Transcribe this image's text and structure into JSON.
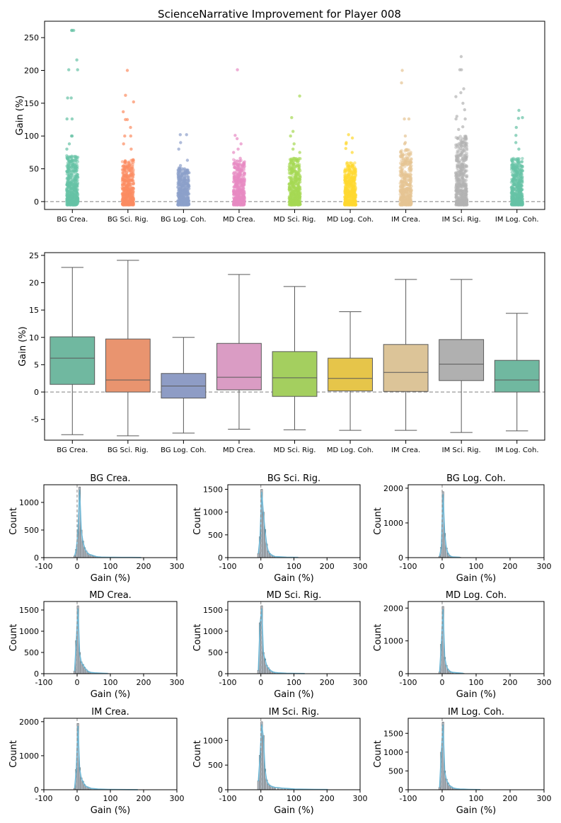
{
  "figure_title": "ScienceNarrative Improvement for Player 008",
  "colors": {
    "palette": [
      "#66c2a5",
      "#fc8d62",
      "#8da0cb",
      "#e78ac3",
      "#a6d854",
      "#ffd92f",
      "#e5c494",
      "#b3b3b3",
      "#66c2a5"
    ],
    "box_palette": [
      "#70b8a0",
      "#e9946f",
      "#8e9cc5",
      "#da9cc4",
      "#a4cf5f",
      "#e6c54a",
      "#dcc498",
      "#b0b0b0",
      "#70b8a0"
    ],
    "hist_fill": "#b9c2cc",
    "kde_line": "#6fb8d6"
  },
  "chart_data": [
    {
      "id": "strip",
      "type": "scatter",
      "subtype": "strip",
      "title": "ScienceNarrative Improvement for Player 008",
      "xlabel": "",
      "ylabel": "Gain (%)",
      "categories": [
        "BG Crea.",
        "BG Sci. Rig.",
        "BG Log. Coh.",
        "MD Crea.",
        "MD Sci. Rig.",
        "MD Log. Coh.",
        "IM Crea.",
        "IM Sci. Rig.",
        "IM Log. Coh."
      ],
      "ylim": [
        -12,
        275
      ],
      "yticks": [
        0,
        50,
        100,
        150,
        200,
        250
      ],
      "reference_line": 0,
      "dense_max": [
        70,
        64,
        52,
        64,
        66,
        60,
        80,
        100,
        66
      ],
      "sparse_values": [
        [
          261,
          261,
          261,
          216,
          201,
          201,
          158,
          158,
          126,
          126,
          100,
          100,
          88,
          80
        ],
        [
          200,
          162,
          152,
          137,
          125,
          125,
          113,
          100,
          100,
          88,
          80
        ],
        [
          102,
          102,
          90,
          80,
          63,
          55
        ],
        [
          201,
          101,
          96,
          88,
          80,
          75,
          66
        ],
        [
          161,
          128,
          107,
          100,
          88,
          80,
          75
        ],
        [
          102,
          97,
          90,
          88,
          81,
          75
        ],
        [
          200,
          181,
          126,
          126,
          100,
          90,
          88
        ],
        [
          221,
          201,
          201,
          172,
          166,
          160,
          150,
          140,
          130,
          126,
          126,
          114,
          110
        ],
        [
          139,
          128,
          127,
          113,
          101,
          90,
          80
        ]
      ]
    },
    {
      "id": "box",
      "type": "box",
      "xlabel": "",
      "ylabel": "Gain (%)",
      "categories": [
        "BG Crea.",
        "BG Sci. Rig.",
        "BG Log. Coh.",
        "MD Crea.",
        "MD Sci. Rig.",
        "MD Log. Coh.",
        "IM Crea.",
        "IM Sci. Rig.",
        "IM Log. Coh."
      ],
      "ylim": [
        -8.8,
        25.5
      ],
      "yticks": [
        -5,
        0,
        5,
        10,
        15,
        20,
        25
      ],
      "reference_line": 0,
      "boxes": [
        {
          "whislo": -7.8,
          "q1": 1.4,
          "med": 6.2,
          "q3": 10.1,
          "whishi": 22.8
        },
        {
          "whislo": -8.0,
          "q1": 0.0,
          "med": 2.2,
          "q3": 9.7,
          "whishi": 24.1
        },
        {
          "whislo": -7.5,
          "q1": -1.1,
          "med": 1.1,
          "q3": 3.4,
          "whishi": 10.0
        },
        {
          "whislo": -6.8,
          "q1": 0.4,
          "med": 2.7,
          "q3": 8.9,
          "whishi": 21.5
        },
        {
          "whislo": -6.9,
          "q1": -0.8,
          "med": 2.6,
          "q3": 7.4,
          "whishi": 19.3
        },
        {
          "whislo": -7.0,
          "q1": 0.2,
          "med": 2.5,
          "q3": 6.2,
          "whishi": 14.7
        },
        {
          "whislo": -7.0,
          "q1": 0.1,
          "med": 3.6,
          "q3": 8.7,
          "whishi": 20.6
        },
        {
          "whislo": -7.4,
          "q1": 2.1,
          "med": 5.1,
          "q3": 9.6,
          "whishi": 20.6
        },
        {
          "whislo": -7.1,
          "q1": 0.0,
          "med": 2.2,
          "q3": 5.8,
          "whishi": 14.4
        }
      ]
    },
    {
      "id": "hist",
      "type": "bar",
      "subtype": "histogram_grid",
      "xlabel": "Gain (%)",
      "ylabel": "Count",
      "xlim": [
        -100,
        300
      ],
      "xticks": [
        -100,
        0,
        100,
        200,
        300
      ],
      "reference_line": 0,
      "panels": [
        {
          "title": "BG Crea.",
          "ymax": 1320,
          "yticks": [
            0,
            500,
            1000
          ],
          "bins": [
            [
              -10,
              30
            ],
            [
              -5,
              150
            ],
            [
              0,
              470
            ],
            [
              5,
              1280
            ],
            [
              10,
              500
            ],
            [
              15,
              300
            ],
            [
              20,
              180
            ],
            [
              25,
              120
            ],
            [
              30,
              80
            ],
            [
              35,
              60
            ],
            [
              40,
              50
            ],
            [
              45,
              40
            ],
            [
              50,
              30
            ],
            [
              55,
              20
            ],
            [
              60,
              15
            ],
            [
              70,
              10
            ],
            [
              80,
              8
            ],
            [
              95,
              6
            ],
            [
              110,
              5
            ],
            [
              130,
              4
            ],
            [
              160,
              4
            ],
            [
              190,
              3
            ]
          ]
        },
        {
          "title": "BG Sci. Rig.",
          "ymax": 1600,
          "yticks": [
            0,
            500,
            1000,
            1500
          ],
          "bins": [
            [
              -10,
              90
            ],
            [
              -5,
              460
            ],
            [
              0,
              1500
            ],
            [
              5,
              1000
            ],
            [
              10,
              620
            ],
            [
              15,
              300
            ],
            [
              20,
              140
            ],
            [
              25,
              90
            ],
            [
              30,
              60
            ],
            [
              35,
              40
            ],
            [
              40,
              25
            ],
            [
              50,
              20
            ],
            [
              60,
              15
            ],
            [
              75,
              10
            ],
            [
              90,
              8
            ],
            [
              110,
              5
            ]
          ]
        },
        {
          "title": "BG Log. Coh.",
          "ymax": 2100,
          "yticks": [
            0,
            1000,
            2000
          ],
          "bins": [
            [
              -10,
              40
            ],
            [
              -5,
              300
            ],
            [
              0,
              1900
            ],
            [
              5,
              700
            ],
            [
              10,
              280
            ],
            [
              15,
              120
            ],
            [
              20,
              60
            ],
            [
              25,
              30
            ],
            [
              30,
              20
            ],
            [
              40,
              15
            ],
            [
              50,
              10
            ]
          ]
        },
        {
          "title": "MD Crea.",
          "ymax": 1700,
          "yticks": [
            0,
            500,
            1000,
            1500
          ],
          "bins": [
            [
              -10,
              60
            ],
            [
              -5,
              780
            ],
            [
              0,
              1600
            ],
            [
              5,
              500
            ],
            [
              10,
              280
            ],
            [
              15,
              220
            ],
            [
              20,
              150
            ],
            [
              25,
              100
            ],
            [
              30,
              60
            ],
            [
              35,
              40
            ],
            [
              40,
              30
            ],
            [
              50,
              20
            ],
            [
              60,
              15
            ],
            [
              75,
              10
            ],
            [
              90,
              6
            ]
          ]
        },
        {
          "title": "MD Sci. Rig.",
          "ymax": 1700,
          "yticks": [
            0,
            500,
            1000,
            1500
          ],
          "bins": [
            [
              -10,
              80
            ],
            [
              -5,
              1200
            ],
            [
              0,
              1600
            ],
            [
              5,
              500
            ],
            [
              10,
              350
            ],
            [
              15,
              200
            ],
            [
              20,
              140
            ],
            [
              25,
              90
            ],
            [
              30,
              60
            ],
            [
              35,
              40
            ],
            [
              40,
              30
            ],
            [
              50,
              20
            ],
            [
              60,
              15
            ],
            [
              75,
              10
            ],
            [
              90,
              8
            ],
            [
              110,
              6
            ],
            [
              130,
              4
            ]
          ]
        },
        {
          "title": "MD Log. Coh.",
          "ymax": 2200,
          "yticks": [
            0,
            1000,
            2000
          ],
          "bins": [
            [
              -10,
              50
            ],
            [
              -5,
              900
            ],
            [
              0,
              2050
            ],
            [
              5,
              500
            ],
            [
              10,
              250
            ],
            [
              15,
              130
            ],
            [
              20,
              80
            ],
            [
              25,
              50
            ],
            [
              30,
              40
            ],
            [
              40,
              30
            ],
            [
              50,
              20
            ],
            [
              60,
              10
            ]
          ]
        },
        {
          "title": "IM Crea.",
          "ymax": 2100,
          "yticks": [
            0,
            1000,
            2000
          ],
          "bins": [
            [
              -10,
              40
            ],
            [
              -5,
              600
            ],
            [
              0,
              1950
            ],
            [
              5,
              650
            ],
            [
              10,
              350
            ],
            [
              15,
              250
            ],
            [
              20,
              150
            ],
            [
              25,
              100
            ],
            [
              30,
              80
            ],
            [
              35,
              60
            ],
            [
              40,
              40
            ],
            [
              50,
              30
            ],
            [
              60,
              20
            ],
            [
              75,
              15
            ],
            [
              90,
              10
            ],
            [
              120,
              6
            ],
            [
              180,
              3
            ]
          ]
        },
        {
          "title": "IM Sci. Rig.",
          "ymax": 1450,
          "yticks": [
            0,
            500,
            1000
          ],
          "bins": [
            [
              -10,
              180
            ],
            [
              -5,
              700
            ],
            [
              0,
              1380
            ],
            [
              5,
              1100
            ],
            [
              10,
              420
            ],
            [
              15,
              200
            ],
            [
              20,
              120
            ],
            [
              25,
              90
            ],
            [
              30,
              70
            ],
            [
              35,
              60
            ],
            [
              40,
              50
            ],
            [
              50,
              45
            ],
            [
              60,
              35
            ],
            [
              70,
              30
            ],
            [
              80,
              25
            ],
            [
              90,
              20
            ],
            [
              100,
              15
            ],
            [
              115,
              12
            ],
            [
              130,
              10
            ],
            [
              160,
              6
            ],
            [
              200,
              4
            ]
          ]
        },
        {
          "title": "IM Log. Coh.",
          "ymax": 1900,
          "yticks": [
            0,
            500,
            1000,
            1500
          ],
          "bins": [
            [
              -10,
              60
            ],
            [
              -5,
              1000
            ],
            [
              0,
              1800
            ],
            [
              5,
              500
            ],
            [
              10,
              280
            ],
            [
              15,
              180
            ],
            [
              20,
              110
            ],
            [
              25,
              80
            ],
            [
              30,
              50
            ],
            [
              35,
              40
            ],
            [
              40,
              30
            ],
            [
              50,
              20
            ],
            [
              60,
              15
            ],
            [
              75,
              10
            ],
            [
              90,
              6
            ],
            [
              110,
              4
            ]
          ]
        }
      ]
    }
  ]
}
